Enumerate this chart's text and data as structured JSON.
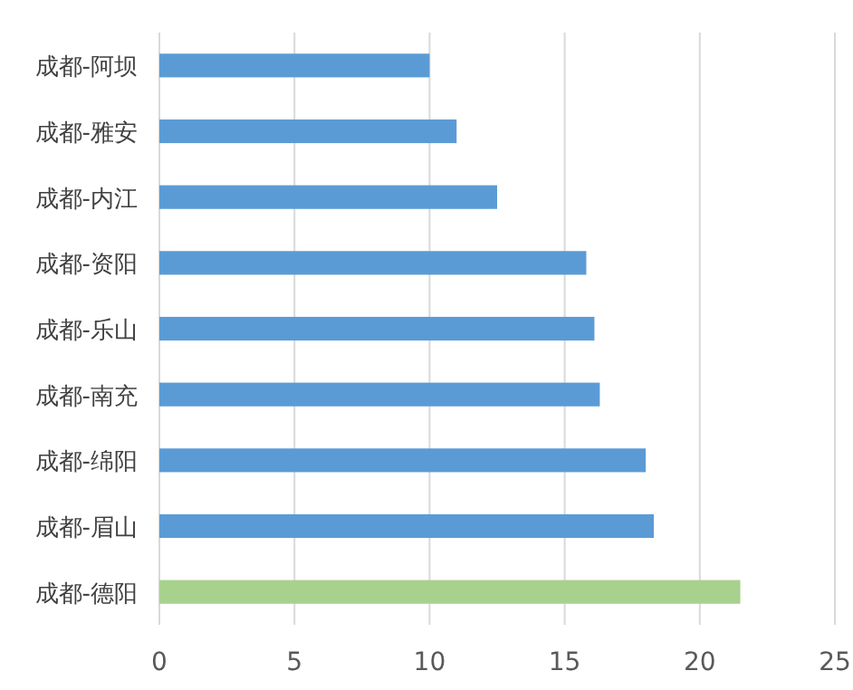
{
  "chart_data": {
    "type": "bar",
    "orientation": "horizontal",
    "categories": [
      "成都-阿坝",
      "成都-雅安",
      "成都-内江",
      "成都-资阳",
      "成都-乐山",
      "成都-南充",
      "成都-绵阳",
      "成都-眉山",
      "成都-德阳"
    ],
    "values": [
      10,
      11,
      12.5,
      15.8,
      16.1,
      16.3,
      18.0,
      18.3,
      21.5
    ],
    "colors": [
      "#5b9bd5",
      "#5b9bd5",
      "#5b9bd5",
      "#5b9bd5",
      "#5b9bd5",
      "#5b9bd5",
      "#5b9bd5",
      "#5b9bd5",
      "#a9d18e"
    ],
    "xlim": [
      0,
      25
    ],
    "xticks": [
      0,
      5,
      10,
      15,
      20,
      25
    ],
    "grid": "x"
  }
}
